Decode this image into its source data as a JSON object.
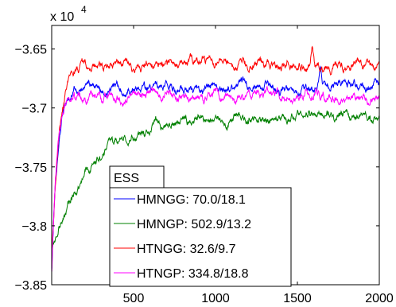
{
  "chart_data": {
    "type": "line",
    "title": "",
    "xlabel": "",
    "ylabel": "",
    "xlim": [
      0,
      2000
    ],
    "ylim": [
      -3.85,
      -3.63
    ],
    "y_multiplier_label": "x 10",
    "y_multiplier_exponent": "4",
    "xticks": [
      500,
      1000,
      1500,
      2000
    ],
    "xtick_labels": [
      "500",
      "1000",
      "1500",
      "2000"
    ],
    "yticks": [
      -3.85,
      -3.8,
      -3.75,
      -3.7,
      -3.65
    ],
    "ytick_labels": [
      "−3.85",
      "−3.8",
      "−3.75",
      "−3.7",
      "−3.65"
    ],
    "grid": false,
    "legend": {
      "title": "ESS",
      "placement": "bottom-left"
    },
    "series": [
      {
        "name": "HMNGG:  70.0/18.1",
        "color": "#0000ff",
        "start": -3.84,
        "plateau": -3.683,
        "rate": 35,
        "noise": 0.0045,
        "peaks": [
          {
            "x": 1640,
            "y": -3.667
          }
        ]
      },
      {
        "name": "HMNGP:  502.9/13.2",
        "color": "#008000",
        "start": -3.82,
        "plateau": -3.708,
        "rate": 240,
        "noise": 0.0045,
        "peaks": []
      },
      {
        "name": "HTNGG:  32.6/9.7",
        "color": "#ff0000",
        "start": -3.83,
        "plateau": -3.663,
        "rate": 45,
        "noise": 0.0045,
        "peaks": [
          {
            "x": 1590,
            "y": -3.643
          }
        ]
      },
      {
        "name": "HTNGP:  334.8/18.8",
        "color": "#ff00ff",
        "start": -3.845,
        "plateau": -3.69,
        "rate": 30,
        "noise": 0.0045,
        "peaks": []
      }
    ]
  }
}
